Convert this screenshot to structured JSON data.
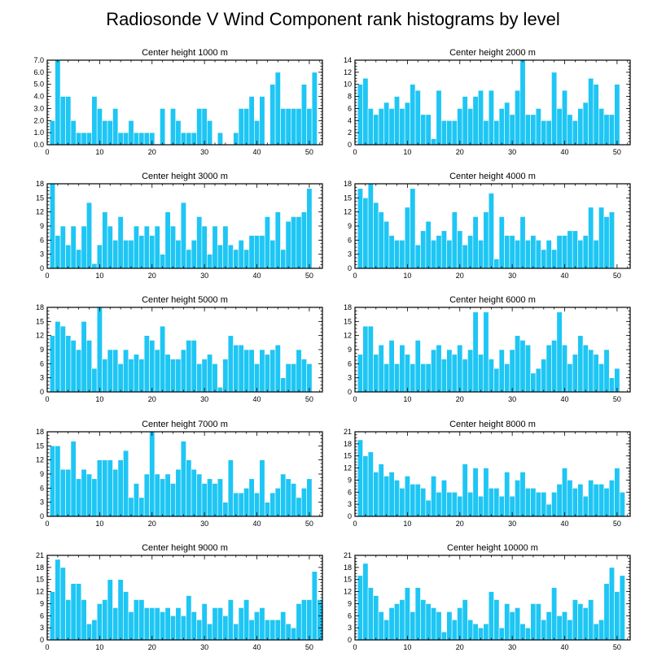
{
  "figure": {
    "title": "Radiosonde V Wind Component rank histograms by level"
  },
  "colors": {
    "bar": "#1ec6f4",
    "axis": "#000000",
    "background": "#ffffff"
  },
  "chart_data": [
    {
      "type": "bar",
      "title": "Center height 1000 m",
      "x": [
        1,
        2,
        3,
        4,
        5,
        6,
        7,
        8,
        9,
        10,
        11,
        12,
        13,
        14,
        15,
        16,
        17,
        18,
        19,
        20,
        21,
        22,
        23,
        24,
        25,
        26,
        27,
        28,
        29,
        30,
        31,
        32,
        33,
        34,
        35,
        36,
        37,
        38,
        39,
        40,
        41,
        42,
        43,
        44,
        45,
        46,
        47,
        48,
        49,
        50,
        51,
        52
      ],
      "values": [
        2,
        7,
        4,
        4,
        2,
        1,
        1,
        1,
        4,
        3,
        2,
        2,
        3,
        1,
        1,
        2,
        1,
        1,
        1,
        1,
        0,
        3,
        0,
        3,
        2,
        1,
        1,
        1,
        3,
        3,
        2,
        0,
        1,
        0,
        0,
        1,
        3,
        3,
        4,
        2,
        4,
        0,
        5,
        6,
        3,
        3,
        3,
        3,
        5,
        3,
        6,
        0
      ],
      "xlim": [
        0,
        52.5
      ],
      "ylim": [
        0,
        7
      ],
      "xticks": [
        0,
        10,
        20,
        30,
        40,
        50
      ],
      "yticks": [
        0,
        1,
        2,
        3,
        4,
        5,
        6,
        7
      ],
      "ytick_labels": [
        "0.0",
        "1.0",
        "2.0",
        "3.0",
        "4.0",
        "5.0",
        "6.0",
        "7.0"
      ]
    },
    {
      "type": "bar",
      "title": "Center height 2000 m",
      "x": [
        1,
        2,
        3,
        4,
        5,
        6,
        7,
        8,
        9,
        10,
        11,
        12,
        13,
        14,
        15,
        16,
        17,
        18,
        19,
        20,
        21,
        22,
        23,
        24,
        25,
        26,
        27,
        28,
        29,
        30,
        31,
        32,
        33,
        34,
        35,
        36,
        37,
        38,
        39,
        40,
        41,
        42,
        43,
        44,
        45,
        46,
        47,
        48,
        49,
        50,
        51,
        52
      ],
      "values": [
        10,
        11,
        6,
        5,
        6,
        7,
        6,
        8,
        6,
        7,
        10,
        9,
        5,
        5,
        1,
        9,
        4,
        4,
        4,
        6,
        8,
        6,
        8,
        9,
        4,
        9,
        4,
        6,
        7,
        5,
        9,
        14,
        5,
        5,
        6,
        4,
        4,
        12,
        6,
        9,
        5,
        4,
        6,
        7,
        11,
        10,
        6,
        5,
        5,
        10,
        0,
        0
      ],
      "xlim": [
        0,
        52.5
      ],
      "ylim": [
        0,
        14
      ],
      "xticks": [
        0,
        10,
        20,
        30,
        40,
        50
      ],
      "yticks": [
        0,
        2,
        4,
        6,
        8,
        10,
        12,
        14
      ],
      "ytick_labels": [
        "0",
        "2",
        "4",
        "6",
        "8",
        "10",
        "12",
        "14"
      ]
    },
    {
      "type": "bar",
      "title": "Center height 3000 m",
      "x": [
        1,
        2,
        3,
        4,
        5,
        6,
        7,
        8,
        9,
        10,
        11,
        12,
        13,
        14,
        15,
        16,
        17,
        18,
        19,
        20,
        21,
        22,
        23,
        24,
        25,
        26,
        27,
        28,
        29,
        30,
        31,
        32,
        33,
        34,
        35,
        36,
        37,
        38,
        39,
        40,
        41,
        42,
        43,
        44,
        45,
        46,
        47,
        48,
        49,
        50,
        51,
        52
      ],
      "values": [
        18,
        7,
        9,
        5,
        9,
        4,
        9,
        14,
        1,
        5,
        12,
        9,
        6,
        11,
        6,
        6,
        9,
        7,
        9,
        7,
        9,
        3,
        12,
        9,
        6,
        14,
        4,
        6,
        11,
        9,
        3,
        9,
        5,
        9,
        5,
        4,
        6,
        4,
        7,
        7,
        7,
        11,
        6,
        12,
        4,
        10,
        11,
        11,
        12,
        17,
        0,
        0
      ],
      "xlim": [
        0,
        52.5
      ],
      "ylim": [
        0,
        18
      ],
      "xticks": [
        0,
        10,
        20,
        30,
        40,
        50
      ],
      "yticks": [
        0,
        3,
        6,
        9,
        12,
        15,
        18
      ],
      "ytick_labels": [
        "0",
        "3",
        "6",
        "9",
        "12",
        "15",
        "18"
      ]
    },
    {
      "type": "bar",
      "title": "Center height 4000 m",
      "x": [
        1,
        2,
        3,
        4,
        5,
        6,
        7,
        8,
        9,
        10,
        11,
        12,
        13,
        14,
        15,
        16,
        17,
        18,
        19,
        20,
        21,
        22,
        23,
        24,
        25,
        26,
        27,
        28,
        29,
        30,
        31,
        32,
        33,
        34,
        35,
        36,
        37,
        38,
        39,
        40,
        41,
        42,
        43,
        44,
        45,
        46,
        47,
        48,
        49,
        50,
        51,
        52
      ],
      "values": [
        17,
        15,
        18,
        14,
        12,
        10,
        7,
        6,
        6,
        13,
        17,
        5,
        8,
        10,
        6,
        7,
        8,
        6,
        12,
        8,
        5,
        7,
        11,
        6,
        12,
        16,
        2,
        11,
        7,
        7,
        6,
        11,
        6,
        7,
        6,
        4,
        6,
        4,
        7,
        7,
        8,
        8,
        6,
        7,
        13,
        6,
        13,
        11,
        12,
        0,
        0,
        0
      ],
      "xlim": [
        0,
        52.5
      ],
      "ylim": [
        0,
        18
      ],
      "xticks": [
        0,
        10,
        20,
        30,
        40,
        50
      ],
      "yticks": [
        0,
        3,
        6,
        9,
        12,
        15,
        18
      ],
      "ytick_labels": [
        "0",
        "3",
        "6",
        "9",
        "12",
        "15",
        "18"
      ]
    },
    {
      "type": "bar",
      "title": "Center height 5000 m",
      "x": [
        1,
        2,
        3,
        4,
        5,
        6,
        7,
        8,
        9,
        10,
        11,
        12,
        13,
        14,
        15,
        16,
        17,
        18,
        19,
        20,
        21,
        22,
        23,
        24,
        25,
        26,
        27,
        28,
        29,
        30,
        31,
        32,
        33,
        34,
        35,
        36,
        37,
        38,
        39,
        40,
        41,
        42,
        43,
        44,
        45,
        46,
        47,
        48,
        49,
        50,
        51,
        52
      ],
      "values": [
        12,
        15,
        14,
        12,
        11,
        9,
        15,
        11,
        5,
        18,
        7,
        9,
        9,
        6,
        9,
        7,
        8,
        7,
        12,
        11,
        9,
        14,
        8,
        7,
        7,
        9,
        11,
        11,
        6,
        7,
        8,
        6,
        1,
        7,
        12,
        10,
        10,
        9,
        9,
        6,
        9,
        8,
        9,
        10,
        3,
        6,
        6,
        9,
        7,
        6,
        0,
        0
      ],
      "xlim": [
        0,
        52.5
      ],
      "ylim": [
        0,
        18
      ],
      "xticks": [
        0,
        10,
        20,
        30,
        40,
        50
      ],
      "yticks": [
        0,
        3,
        6,
        9,
        12,
        15,
        18
      ],
      "ytick_labels": [
        "0",
        "3",
        "6",
        "9",
        "12",
        "15",
        "18"
      ]
    },
    {
      "type": "bar",
      "title": "Center height 6000 m",
      "x": [
        1,
        2,
        3,
        4,
        5,
        6,
        7,
        8,
        9,
        10,
        11,
        12,
        13,
        14,
        15,
        16,
        17,
        18,
        19,
        20,
        21,
        22,
        23,
        24,
        25,
        26,
        27,
        28,
        29,
        30,
        31,
        32,
        33,
        34,
        35,
        36,
        37,
        38,
        39,
        40,
        41,
        42,
        43,
        44,
        45,
        46,
        47,
        48,
        49,
        50,
        51,
        52
      ],
      "values": [
        8,
        14,
        14,
        8,
        10,
        6,
        11,
        6,
        10,
        8,
        6,
        11,
        6,
        6,
        9,
        10,
        7,
        9,
        8,
        10,
        7,
        9,
        17,
        8,
        17,
        7,
        5,
        9,
        6,
        9,
        12,
        11,
        10,
        4,
        5,
        7,
        10,
        11,
        17,
        10,
        6,
        8,
        12,
        10,
        9,
        8,
        6,
        9,
        3,
        5,
        0,
        0
      ],
      "xlim": [
        0,
        52.5
      ],
      "ylim": [
        0,
        18
      ],
      "xticks": [
        0,
        10,
        20,
        30,
        40,
        50
      ],
      "yticks": [
        0,
        3,
        6,
        9,
        12,
        15,
        18
      ],
      "ytick_labels": [
        "0",
        "3",
        "6",
        "9",
        "12",
        "15",
        "18"
      ]
    },
    {
      "type": "bar",
      "title": "Center height 7000 m",
      "x": [
        1,
        2,
        3,
        4,
        5,
        6,
        7,
        8,
        9,
        10,
        11,
        12,
        13,
        14,
        15,
        16,
        17,
        18,
        19,
        20,
        21,
        22,
        23,
        24,
        25,
        26,
        27,
        28,
        29,
        30,
        31,
        32,
        33,
        34,
        35,
        36,
        37,
        38,
        39,
        40,
        41,
        42,
        43,
        44,
        45,
        46,
        47,
        48,
        49,
        50,
        51,
        52
      ],
      "values": [
        15,
        15,
        10,
        10,
        16,
        8,
        10,
        9,
        8,
        12,
        12,
        12,
        10,
        12,
        14,
        4,
        7,
        4,
        9,
        18,
        9,
        8,
        9,
        7,
        10,
        16,
        12,
        10,
        9,
        7,
        8,
        7,
        8,
        3,
        12,
        5,
        5,
        6,
        8,
        5,
        12,
        3,
        5,
        6,
        9,
        8,
        7,
        4,
        6,
        8,
        0,
        0
      ],
      "xlim": [
        0,
        52.5
      ],
      "ylim": [
        0,
        18
      ],
      "xticks": [
        0,
        10,
        20,
        30,
        40,
        50
      ],
      "yticks": [
        0,
        3,
        6,
        9,
        12,
        15,
        18
      ],
      "ytick_labels": [
        "0",
        "3",
        "6",
        "9",
        "12",
        "15",
        "18"
      ]
    },
    {
      "type": "bar",
      "title": "Center height 8000 m",
      "x": [
        1,
        2,
        3,
        4,
        5,
        6,
        7,
        8,
        9,
        10,
        11,
        12,
        13,
        14,
        15,
        16,
        17,
        18,
        19,
        20,
        21,
        22,
        23,
        24,
        25,
        26,
        27,
        28,
        29,
        30,
        31,
        32,
        33,
        34,
        35,
        36,
        37,
        38,
        39,
        40,
        41,
        42,
        43,
        44,
        45,
        46,
        47,
        48,
        49,
        50,
        51,
        52
      ],
      "values": [
        19,
        15,
        16,
        11,
        13,
        10,
        11,
        9,
        7,
        10,
        8,
        8,
        7,
        4,
        10,
        6,
        9,
        6,
        6,
        5,
        13,
        6,
        12,
        5,
        12,
        7,
        7,
        5,
        11,
        5,
        9,
        11,
        7,
        7,
        6,
        6,
        3,
        6,
        8,
        12,
        9,
        7,
        8,
        5,
        9,
        8,
        8,
        7,
        9,
        12,
        6,
        0
      ],
      "xlim": [
        0,
        52.5
      ],
      "ylim": [
        0,
        21
      ],
      "xticks": [
        0,
        10,
        20,
        30,
        40,
        50
      ],
      "yticks": [
        0,
        3,
        6,
        9,
        12,
        15,
        18,
        21
      ],
      "ytick_labels": [
        "0",
        "3",
        "6",
        "9",
        "12",
        "15",
        "18",
        "21"
      ]
    },
    {
      "type": "bar",
      "title": "Center height 9000 m",
      "x": [
        1,
        2,
        3,
        4,
        5,
        6,
        7,
        8,
        9,
        10,
        11,
        12,
        13,
        14,
        15,
        16,
        17,
        18,
        19,
        20,
        21,
        22,
        23,
        24,
        25,
        26,
        27,
        28,
        29,
        30,
        31,
        32,
        33,
        34,
        35,
        36,
        37,
        38,
        39,
        40,
        41,
        42,
        43,
        44,
        45,
        46,
        47,
        48,
        49,
        50,
        51,
        52
      ],
      "values": [
        12,
        20,
        18,
        10,
        14,
        14,
        10,
        4,
        5,
        9,
        10,
        15,
        8,
        15,
        12,
        7,
        10,
        10,
        8,
        8,
        8,
        7,
        8,
        6,
        8,
        6,
        11,
        7,
        5,
        9,
        4,
        8,
        8,
        6,
        10,
        4,
        8,
        10,
        5,
        7,
        8,
        5,
        5,
        5,
        7,
        4,
        3,
        9,
        10,
        10,
        17,
        10
      ],
      "xlim": [
        0,
        52.5
      ],
      "ylim": [
        0,
        21
      ],
      "xticks": [
        0,
        10,
        20,
        30,
        40,
        50
      ],
      "yticks": [
        0,
        3,
        6,
        9,
        12,
        15,
        18,
        21
      ],
      "ytick_labels": [
        "0",
        "3",
        "6",
        "9",
        "12",
        "15",
        "18",
        "21"
      ]
    },
    {
      "type": "bar",
      "title": "Center height 10000 m",
      "x": [
        1,
        2,
        3,
        4,
        5,
        6,
        7,
        8,
        9,
        10,
        11,
        12,
        13,
        14,
        15,
        16,
        17,
        18,
        19,
        20,
        21,
        22,
        23,
        24,
        25,
        26,
        27,
        28,
        29,
        30,
        31,
        32,
        33,
        34,
        35,
        36,
        37,
        38,
        39,
        40,
        41,
        42,
        43,
        44,
        45,
        46,
        47,
        48,
        49,
        50,
        51,
        52
      ],
      "values": [
        16,
        19,
        13,
        11,
        7,
        5,
        8,
        9,
        10,
        13,
        7,
        13,
        10,
        9,
        8,
        7,
        2,
        7,
        5,
        8,
        10,
        5,
        4,
        3,
        4,
        12,
        10,
        3,
        9,
        7,
        8,
        4,
        3,
        9,
        9,
        5,
        7,
        13,
        6,
        7,
        5,
        10,
        9,
        8,
        10,
        4,
        5,
        14,
        18,
        12,
        16,
        0
      ],
      "xlim": [
        0,
        52.5
      ],
      "ylim": [
        0,
        21
      ],
      "xticks": [
        0,
        10,
        20,
        30,
        40,
        50
      ],
      "yticks": [
        0,
        3,
        6,
        9,
        12,
        15,
        18,
        21
      ],
      "ytick_labels": [
        "0",
        "3",
        "6",
        "9",
        "12",
        "15",
        "18",
        "21"
      ]
    }
  ]
}
